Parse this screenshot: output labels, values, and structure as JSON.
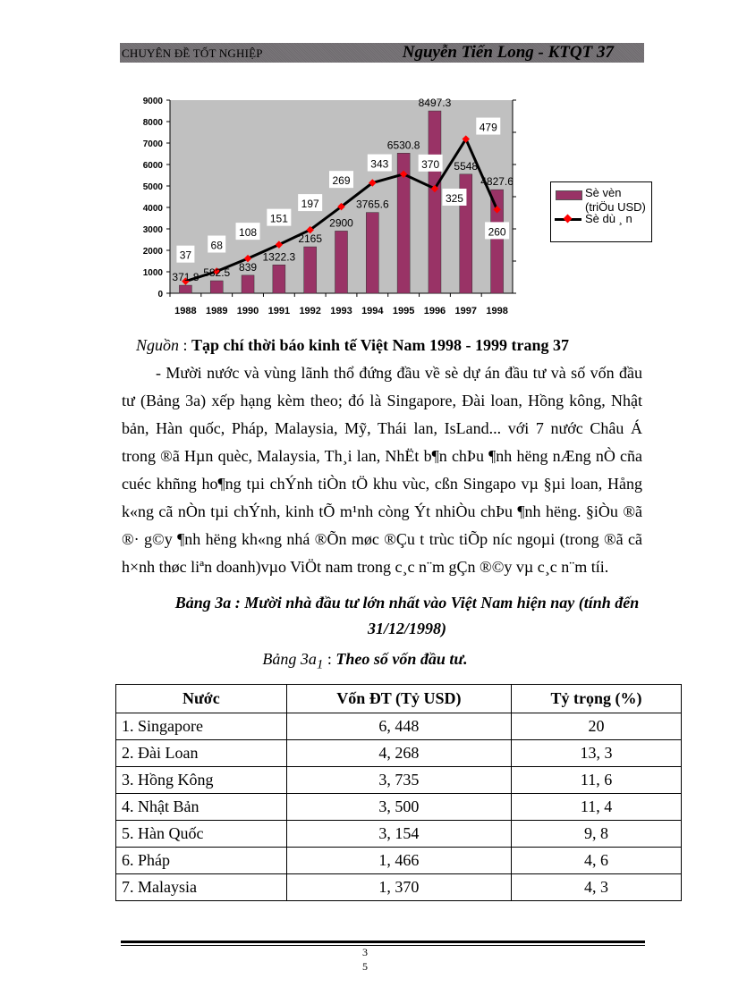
{
  "header": {
    "left": "CHUYÊN ĐỀ TỐT NGHIỆP",
    "right": "Nguyễn Tiến Long - KTQT 37"
  },
  "chart_data": {
    "type": "bar+line",
    "categories": [
      "1988",
      "1989",
      "1990",
      "1991",
      "1992",
      "1993",
      "1994",
      "1995",
      "1996",
      "1997",
      "1998"
    ],
    "series": [
      {
        "name": "Sè vèn (triÖu USD)",
        "type": "bar",
        "axis": "left",
        "color": "#993366",
        "values": [
          371.8,
          582.5,
          839,
          1322.3,
          2165,
          2900,
          3765.6,
          6530.8,
          8497.3,
          5548,
          4827.6
        ],
        "labels": [
          "371.8",
          "582.5",
          "839",
          "1322.3",
          "2165",
          "2900",
          "3765.6",
          "6530.8",
          "8497.3",
          "5548",
          "4827.6"
        ]
      },
      {
        "name": "Sè dù ¸ n",
        "type": "line",
        "axis": "right",
        "color": "#000000",
        "marker_color": "#ff0000",
        "values": [
          37,
          68,
          108,
          151,
          197,
          269,
          343,
          370,
          325,
          479,
          260
        ],
        "labels": [
          "37",
          "68",
          "108",
          "151",
          "197",
          "269",
          "343",
          "370",
          "325",
          "479",
          "260"
        ]
      }
    ],
    "y_left": {
      "range": [
        0,
        9000
      ],
      "ticks": [
        "0",
        "1000",
        "2000",
        "3000",
        "4000",
        "5000",
        "6000",
        "7000",
        "8000",
        "9000"
      ]
    },
    "y_right": {
      "range": [
        0,
        600
      ],
      "ticks": [
        "0",
        "100",
        "200",
        "300",
        "400",
        "500",
        "600"
      ]
    },
    "plot_background": "#c0c0c0",
    "grid": false,
    "legend": {
      "placement": "right",
      "line1": "Sè vèn",
      "line2": "(triÖu USD)",
      "line3": "Sè dù ¸ n"
    }
  },
  "source": {
    "label": "Nguồn",
    "sep": " : ",
    "text": "Tạp chí thời báo kinh tế Việt Nam 1998 - 1999 trang 37"
  },
  "paragraph": "- Mười nước và vùng lãnh thổ đứng đầu về sè dự án đầu tư và số vốn đầu tư (Bảng 3a) xếp hạng kèm theo; đó là Singapore, Đài loan, Hồng kông, Nhật bản, Hàn quốc, Pháp, Malaysia,  Mỹ, Thái lan, IsLand... với 7 nước Châu Á trong ®ã Hµn quèc, Malaysia,  Th¸i lan, NhËt b¶n chÞu ¶nh h­ëng  nÆng nÒ cña cuéc khñng ho¶ng tµi chÝnh tiÒn tÖ khu vùc, cßn Singapo vµ §µi loan, Hång k«ng cã nÒn tµi chÝnh, kinh tÕ m¹nh còng Ýt nhiÒu chÞu ¶nh h­ëng.  §iÒu ®ã ®· g©y ¶nh h­ëng  kh«ng nhá ®Õn møc ®Çu t  trùc tiÕp n­íc  ngoµi (trong ®ã cã h×nh thøc liªn  doanh)vµo ViÖt nam trong c¸c n¨m gÇn ®©y vµ c¸c n¨m tíi.",
  "table_caption": "Bảng 3a : Mười nhà đầu tư lớn nhất vào Việt Nam hiện nay (tính đến 31/12/1998)",
  "subcaption": {
    "label": "Bảng 3a",
    "sub": "1",
    "sep": " : ",
    "text": "Theo số vốn đầu tư."
  },
  "table": {
    "headers": [
      "Nước",
      "Vốn ĐT (Tỷ USD)",
      "Tỷ trọng (%)"
    ],
    "rows": [
      [
        "1. Singapore",
        "6, 448",
        "20"
      ],
      [
        "2. Đài Loan",
        "4, 268",
        "13, 3"
      ],
      [
        "3. Hồng Kông",
        "3, 735",
        "11, 6"
      ],
      [
        "4. Nhật Bản",
        "3, 500",
        "11, 4"
      ],
      [
        "5. Hàn Quốc",
        "3, 154",
        "9, 8"
      ],
      [
        "6. Pháp",
        "1, 466",
        "4, 6"
      ],
      [
        "7. Malaysia",
        "1, 370",
        "4, 3"
      ]
    ]
  },
  "footer": {
    "page_top": "3",
    "page_bottom": "5"
  }
}
